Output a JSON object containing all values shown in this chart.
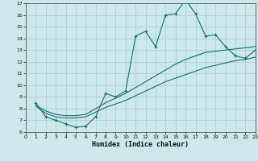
{
  "bg_color": "#cce8e8",
  "line_color": "#1a7070",
  "grid_color": "#aacccc",
  "xlabel": "Humidex (Indice chaleur)",
  "xlim": [
    0,
    23
  ],
  "ylim": [
    6,
    17
  ],
  "xticks": [
    0,
    1,
    2,
    3,
    4,
    5,
    6,
    7,
    8,
    9,
    10,
    11,
    12,
    13,
    14,
    15,
    16,
    17,
    18,
    19,
    20,
    21,
    22,
    23
  ],
  "yticks": [
    6,
    7,
    8,
    9,
    10,
    11,
    12,
    13,
    14,
    15,
    16,
    17
  ],
  "line_main_x": [
    1,
    2,
    3,
    4,
    5,
    6,
    7,
    8,
    9,
    10,
    11,
    12,
    13,
    14,
    15,
    16,
    17,
    18,
    19,
    20,
    21,
    22,
    23
  ],
  "line_main_y": [
    8.5,
    7.3,
    7.0,
    6.7,
    6.4,
    6.5,
    7.3,
    9.3,
    9.0,
    9.5,
    14.2,
    14.6,
    13.3,
    16.0,
    16.1,
    17.3,
    16.1,
    14.2,
    14.3,
    13.3,
    12.5,
    12.3,
    13.0
  ],
  "line2_x": [
    1,
    2,
    3,
    4,
    5,
    6,
    7,
    8,
    9,
    10,
    11,
    12,
    13,
    14,
    15,
    16,
    17,
    18,
    19,
    20,
    21,
    22,
    23
  ],
  "line2_y": [
    8.3,
    7.8,
    7.5,
    7.4,
    7.4,
    7.5,
    8.0,
    8.5,
    8.9,
    9.3,
    9.8,
    10.3,
    10.8,
    11.3,
    11.8,
    12.2,
    12.5,
    12.8,
    12.9,
    13.0,
    13.1,
    13.2,
    13.3
  ],
  "line3_x": [
    1,
    2,
    3,
    4,
    5,
    6,
    7,
    8,
    9,
    10,
    11,
    12,
    13,
    14,
    15,
    16,
    17,
    18,
    19,
    20,
    21,
    22,
    23
  ],
  "line3_y": [
    8.2,
    7.6,
    7.3,
    7.2,
    7.2,
    7.3,
    7.7,
    8.1,
    8.4,
    8.7,
    9.1,
    9.5,
    9.9,
    10.3,
    10.6,
    10.9,
    11.2,
    11.5,
    11.7,
    11.9,
    12.1,
    12.2,
    12.4
  ]
}
